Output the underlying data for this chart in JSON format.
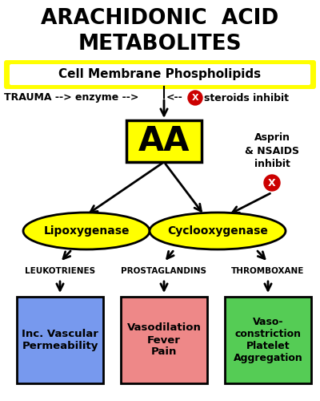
{
  "title_line1": "ARACHIDONIC  ACID",
  "title_line2": "METABOLITES",
  "bg_color": "#ffffff",
  "title_color": "#000000",
  "title_fontsize": 19,
  "cell_membrane_text": "Cell Membrane Phospholipids",
  "trauma_text": "TRAUMA --> enzyme -->",
  "aa_text": "AA",
  "aa_bg": "#ffff00",
  "asprin_text": "Asprin\n& NSAIDS\ninhibit",
  "lipo_text": "Lipoxygenase",
  "cyclo_text": "Cyclooxygenase",
  "ellipse_bg": "#ffff00",
  "leuko_label": "LEUKOTRIENES",
  "prosta_label": "PROSTAGLANDINS",
  "thrombo_label": "THROMBOXANE",
  "box1_text": "Inc. Vascular\nPermeability",
  "box1_bg": "#7799ee",
  "box2_text": "Vasodilation\nFever\nPain",
  "box2_bg": "#ee8888",
  "box3_text": "Vaso-\nconstriction\nPlatelet\nAggregation",
  "box3_bg": "#55cc55",
  "box_border": "#000000",
  "red_x_color": "#cc0000",
  "arrow_color": "#000000",
  "yellow": "#ffff00",
  "dark_yellow": "#cccc00"
}
